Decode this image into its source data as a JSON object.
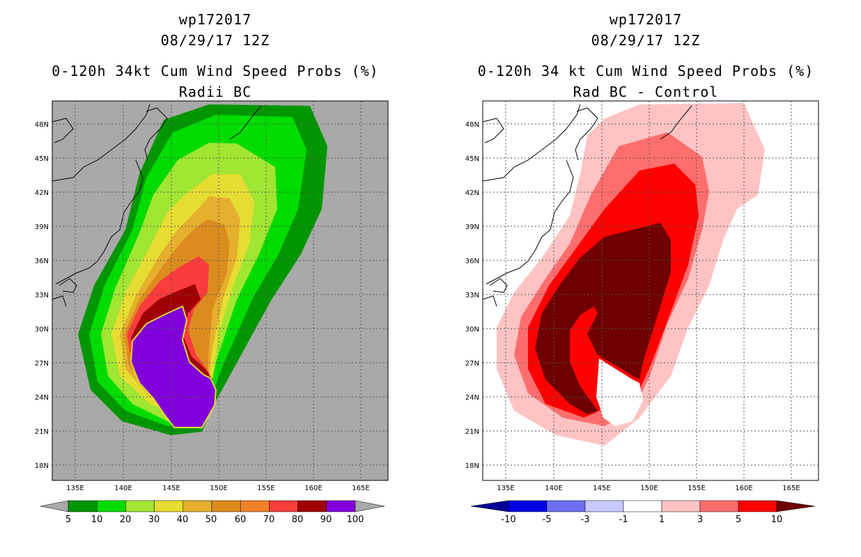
{
  "chart_data": [
    {
      "type": "filled-contour-map",
      "panel": "left",
      "title_lines": [
        "wp172017",
        "08/29/17 12Z",
        "0-120h 34kt Cum Wind Speed Probs (%)",
        "Radii BC"
      ],
      "x_ticks": [
        "135E",
        "140E",
        "145E",
        "150E",
        "155E",
        "160E",
        "165E"
      ],
      "y_ticks": [
        "18N",
        "21N",
        "24N",
        "27N",
        "30N",
        "33N",
        "36N",
        "39N",
        "42N",
        "45N",
        "48N"
      ],
      "xlim": [
        132,
        168
      ],
      "ylim": [
        16.5,
        50
      ],
      "background_color": "#a9a9a9",
      "colorbar": {
        "levels": [
          "5",
          "10",
          "20",
          "30",
          "40",
          "50",
          "60",
          "70",
          "80",
          "90",
          "100"
        ],
        "colors": [
          "#009600",
          "#00dc00",
          "#a0e632",
          "#e6dc32",
          "#e6af2d",
          "#dc8c1e",
          "#f08228",
          "#fa3c3c",
          "#a00000",
          "#8200dc"
        ],
        "end_colors": [
          "#a9a9a9",
          "#a9a9a9"
        ]
      }
    },
    {
      "type": "filled-contour-map",
      "panel": "right",
      "title_lines": [
        "wp172017",
        "08/29/17 12Z",
        "0-120h 34 kt Cum Wind Speed Probs (%)",
        "Rad BC - Control"
      ],
      "x_ticks": [
        "135E",
        "140E",
        "145E",
        "150E",
        "155E",
        "160E",
        "165E"
      ],
      "y_ticks": [
        "18N",
        "21N",
        "24N",
        "27N",
        "30N",
        "33N",
        "36N",
        "39N",
        "42N",
        "45N",
        "48N"
      ],
      "xlim": [
        132,
        168
      ],
      "ylim": [
        16.5,
        50
      ],
      "background_color": "#ffffff",
      "colorbar": {
        "levels": [
          "-10",
          "-5",
          "-3",
          "-1",
          "1",
          "3",
          "5",
          "10"
        ],
        "colors": [
          "#0000e6",
          "#6e6ef0",
          "#c8c8ff",
          "#ffffff",
          "#ffc3c3",
          "#ff6e6e",
          "#ff0000"
        ],
        "end_colors": [
          "#000096",
          "#6e0000"
        ]
      }
    }
  ]
}
